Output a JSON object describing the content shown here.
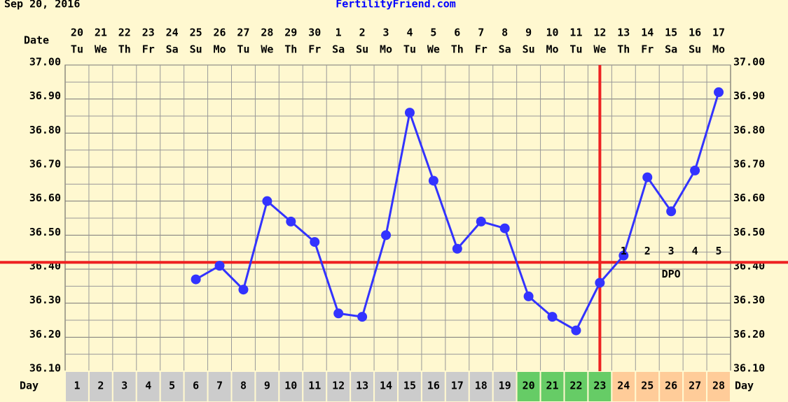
{
  "chart_data": {
    "type": "line",
    "title": "FertilityFriend.com",
    "subtitle": "Sep 20, 2016",
    "date_label": "Date",
    "day_label": "Day",
    "dpo_label": "DPO",
    "categories": [
      "20",
      "21",
      "22",
      "23",
      "24",
      "25",
      "26",
      "27",
      "28",
      "29",
      "30",
      "1",
      "2",
      "3",
      "4",
      "5",
      "6",
      "7",
      "8",
      "9",
      "10",
      "11",
      "12",
      "13",
      "14",
      "15",
      "16",
      "17"
    ],
    "weekdays": [
      "Tu",
      "We",
      "Th",
      "Fr",
      "Sa",
      "Su",
      "Mo",
      "Tu",
      "We",
      "Th",
      "Fr",
      "Sa",
      "Su",
      "Mo",
      "Tu",
      "We",
      "Th",
      "Fr",
      "Sa",
      "Su",
      "Mo",
      "Tu",
      "We",
      "Th",
      "Fr",
      "Sa",
      "Su",
      "Mo"
    ],
    "days": [
      1,
      2,
      3,
      4,
      5,
      6,
      7,
      8,
      9,
      10,
      11,
      12,
      13,
      14,
      15,
      16,
      17,
      18,
      19,
      20,
      21,
      22,
      23,
      24,
      25,
      26,
      27,
      28
    ],
    "day_colors": [
      "#cccccc",
      "#cccccc",
      "#cccccc",
      "#cccccc",
      "#cccccc",
      "#cccccc",
      "#cccccc",
      "#cccccc",
      "#cccccc",
      "#cccccc",
      "#cccccc",
      "#cccccc",
      "#cccccc",
      "#cccccc",
      "#cccccc",
      "#cccccc",
      "#cccccc",
      "#cccccc",
      "#cccccc",
      "#66cc66",
      "#66cc66",
      "#66cc66",
      "#66cc66",
      "#ffcc99",
      "#ffcc99",
      "#ffcc99",
      "#ffcc99",
      "#ffcc99"
    ],
    "values": [
      null,
      null,
      null,
      null,
      null,
      36.37,
      36.41,
      36.34,
      36.6,
      36.54,
      36.48,
      36.27,
      36.26,
      36.5,
      36.86,
      36.66,
      36.46,
      36.54,
      36.52,
      36.32,
      36.26,
      36.22,
      36.36,
      36.44,
      36.67,
      36.57,
      36.69,
      36.92
    ],
    "color": "#3333ff",
    "coverline": 36.42,
    "ovulation_day": 23,
    "marker_color": "#ee2222",
    "dpo": [
      1,
      2,
      3,
      4,
      5
    ],
    "ylim": [
      36.1,
      37.0
    ],
    "yticks": [
      {
        "value": 36.1,
        "label": "36.10"
      },
      {
        "value": 36.2,
        "label": "36.20"
      },
      {
        "value": 36.3,
        "label": "36.30"
      },
      {
        "value": 36.4,
        "label": "36.40"
      },
      {
        "value": 36.5,
        "label": "36.50"
      },
      {
        "value": 36.6,
        "label": "36.60"
      },
      {
        "value": 36.7,
        "label": "36.70"
      },
      {
        "value": 36.8,
        "label": "36.80"
      },
      {
        "value": 36.9,
        "label": "36.90"
      },
      {
        "value": 37.0,
        "label": "37.00"
      }
    ],
    "grid": true
  }
}
